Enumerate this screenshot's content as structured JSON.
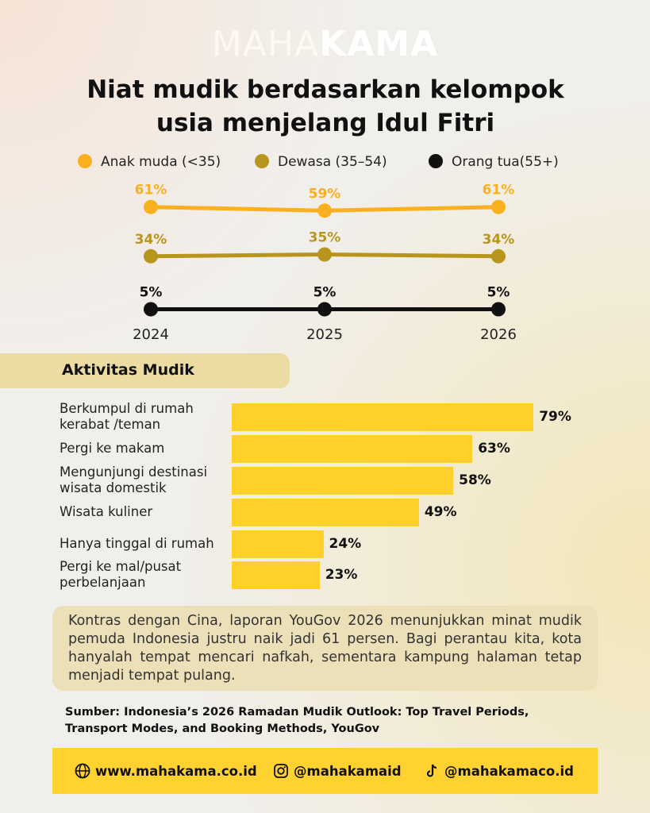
{
  "brand": {
    "light": "MAHA",
    "bold": "KAMA"
  },
  "chart_data": [
    {
      "type": "line",
      "title": "Niat mudik berdasarkan kelompok usia menjelang Idul Fitri",
      "categories": [
        "2024",
        "2025",
        "2026"
      ],
      "ylim": [
        0,
        70
      ],
      "legend": "top",
      "series": [
        {
          "name": "Anak muda (<35)",
          "color": "#fbb01f",
          "values": [
            61,
            59,
            61
          ],
          "value_labels": [
            "61%",
            "59%",
            "61%"
          ]
        },
        {
          "name": "Dewasa (35–54)",
          "color": "#b8961e",
          "values": [
            34,
            35,
            34
          ],
          "value_labels": [
            "34%",
            "35%",
            "34%"
          ]
        },
        {
          "name": "Orang tua(55+)",
          "color": "#111111",
          "values": [
            5,
            5,
            5
          ],
          "value_labels": [
            "5%",
            "5%",
            "5%"
          ]
        }
      ]
    },
    {
      "type": "hbar",
      "title": "Aktivitas Mudik",
      "categories": [
        "Berkumpul di rumah kerabat /teman",
        "Pergi ke makam",
        "Mengunjungi destinasi wisata domestik",
        "Wisata kuliner",
        "Hanya tinggal di rumah",
        "Pergi ke mal/pusat perbelanjaan"
      ],
      "values": [
        79,
        63,
        58,
        49,
        24,
        23
      ],
      "value_labels": [
        "79%",
        "63%",
        "58%",
        "49%",
        "24%",
        "23%"
      ],
      "xlim": [
        0,
        80
      ],
      "color": "#ffd02a"
    }
  ],
  "note": "Kontras dengan Cina, laporan YouGov 2026 menunjukkan minat mudik pemuda Indonesia justru naik jadi 61 persen. Bagi perantau kita, kota hanyalah tempat mencari nafkah, sementara kampung halaman tetap menjadi tempat pulang.",
  "source": "Sumber: Indonesia’s 2026 Ramadan Mudik Outlook: Top Travel Periods, Transport Modes, and Booking Methods, YouGov",
  "footer": {
    "website": "www.mahakama.co.id",
    "instagram": "@mahakamaid",
    "tiktok": "@mahakamaco.id"
  }
}
